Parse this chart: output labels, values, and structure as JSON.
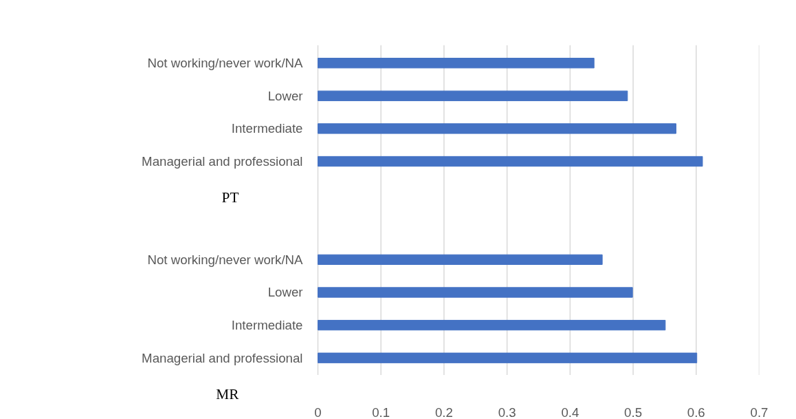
{
  "chart_data": {
    "type": "bar",
    "orientation": "horizontal",
    "categories": [
      "Not working/never work/NA",
      "Lower",
      "Intermediate",
      "Managerial and professional",
      null,
      null,
      "Not working/never work/NA",
      "Lower",
      "Intermediate",
      "Managerial and professional"
    ],
    "values": [
      0.438,
      0.491,
      0.568,
      0.61,
      null,
      null,
      0.451,
      0.499,
      0.551,
      0.601
    ],
    "color": "#4472c4",
    "xlim": [
      0,
      0.7
    ],
    "xticks": [
      0,
      0.1,
      0.2,
      0.3,
      0.4,
      0.5,
      0.6,
      0.7
    ],
    "grid": "x",
    "annotations": [
      "PT",
      "MR"
    ]
  }
}
